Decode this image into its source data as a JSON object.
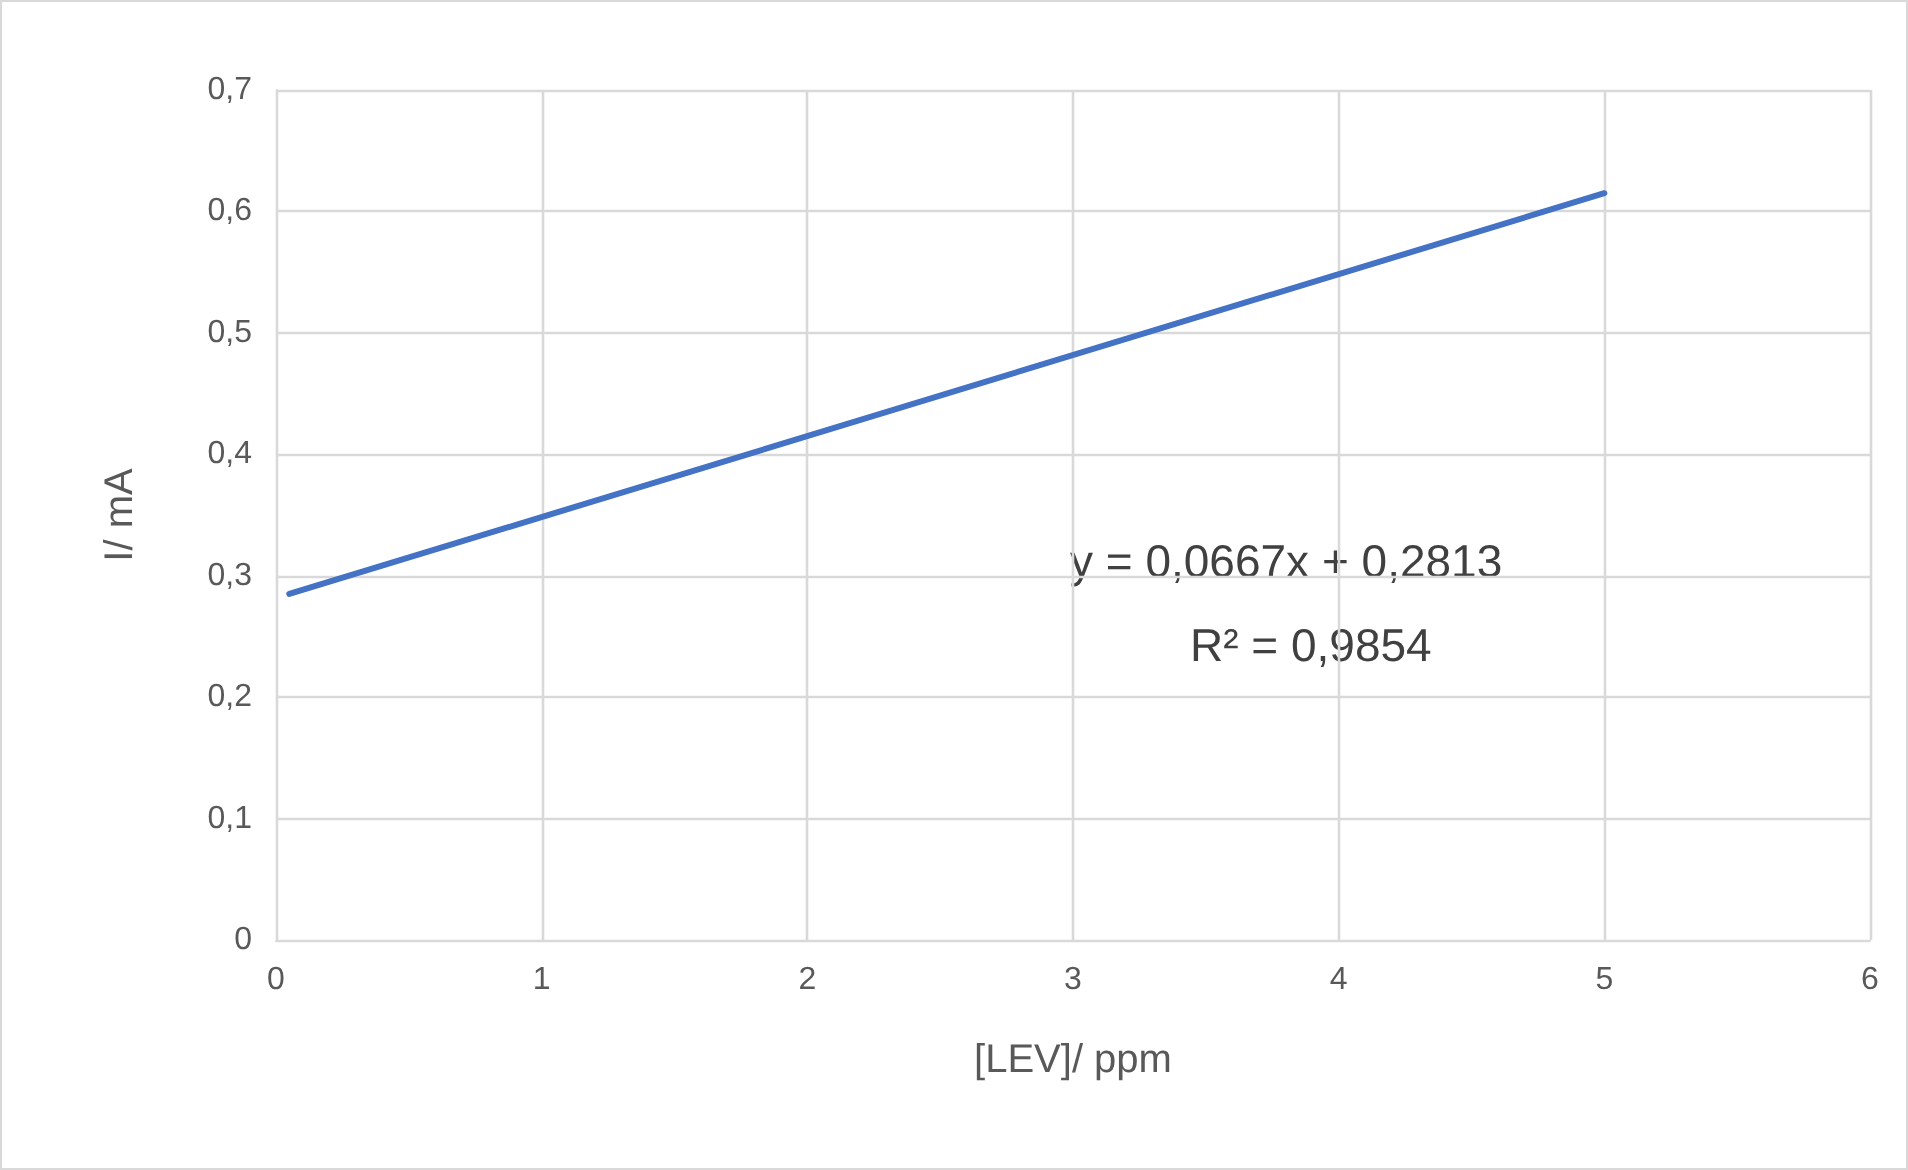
{
  "chart_data": {
    "type": "line",
    "xlabel": "[LEV]/ ppm",
    "ylabel": "I/ mA",
    "x": [
      0.05,
      5
    ],
    "series": [
      {
        "color": "#4472c4",
        "values": [
          0.285,
          0.615
        ]
      }
    ],
    "xlim": [
      0,
      6
    ],
    "xticks": [
      0,
      1,
      2,
      3,
      4,
      5,
      6
    ],
    "ylim": [
      0,
      0.7
    ],
    "yticks": [
      0,
      {
        "value": 0.1,
        "label": "0,1"
      },
      {
        "value": 0.2,
        "label": "0,2"
      },
      {
        "value": 0.3,
        "label": "0,3"
      },
      {
        "value": 0.4,
        "label": "0,4"
      },
      {
        "value": 0.5,
        "label": "0,5"
      },
      {
        "value": 0.6,
        "label": "0,6"
      },
      {
        "value": 0.7,
        "label": "0,7"
      }
    ],
    "grid": true,
    "marker": "none",
    "line_style": "solid",
    "annotations": [
      "y = 0,0667x + 0,2813",
      "R² = 0,9854"
    ]
  }
}
